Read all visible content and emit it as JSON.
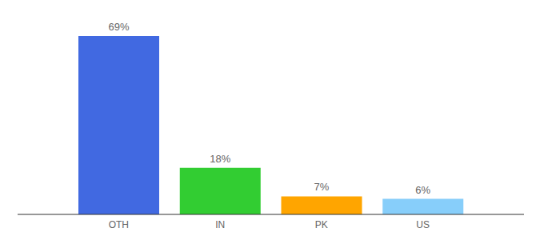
{
  "chart_data": {
    "type": "bar",
    "categories": [
      "OTH",
      "IN",
      "PK",
      "US"
    ],
    "values": [
      69,
      18,
      7,
      6
    ],
    "value_labels": [
      "69%",
      "18%",
      "7%",
      "6%"
    ],
    "colors": [
      "#4169e1",
      "#32cd32",
      "#ffa500",
      "#87cefa"
    ],
    "data_labels": true,
    "tick_labels": "x"
  }
}
